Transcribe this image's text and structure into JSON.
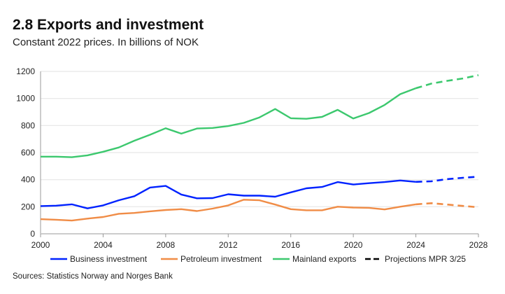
{
  "chart_data": {
    "type": "line",
    "title": "2.8 Exports and investment",
    "subtitle": "Constant 2022 prices. In billions of NOK",
    "source": "Sources: Statistics Norway and Norges Bank",
    "xlim": [
      2000,
      2028
    ],
    "ylim": [
      0,
      1200
    ],
    "xticks": [
      2000,
      2004,
      2008,
      2012,
      2016,
      2020,
      2024,
      2028
    ],
    "yticks": [
      0,
      200,
      400,
      600,
      800,
      1000,
      1200
    ],
    "grid": "horizontal",
    "legend_placement": "bottom",
    "projection_start": 2024,
    "x": [
      2000,
      2001,
      2002,
      2003,
      2004,
      2005,
      2006,
      2007,
      2008,
      2009,
      2010,
      2011,
      2012,
      2013,
      2014,
      2015,
      2016,
      2017,
      2018,
      2019,
      2020,
      2021,
      2022,
      2023,
      2024,
      2025,
      2026,
      2027,
      2028
    ],
    "series": [
      {
        "name": "Business investment",
        "color": "#0022ff",
        "values": [
          205,
          208,
          218,
          188,
          210,
          248,
          278,
          342,
          354,
          290,
          262,
          264,
          292,
          282,
          282,
          274,
          306,
          336,
          346,
          382,
          364,
          374,
          382,
          394,
          384,
          388,
          404,
          414,
          422
        ]
      },
      {
        "name": "Petroleum investment",
        "color": "#f08c46",
        "values": [
          108,
          104,
          98,
          112,
          124,
          148,
          154,
          166,
          176,
          182,
          168,
          186,
          210,
          252,
          248,
          216,
          182,
          174,
          174,
          200,
          194,
          192,
          180,
          200,
          218,
          226,
          216,
          206,
          196
        ]
      },
      {
        "name": "Mainland exports",
        "color": "#3cc86e",
        "values": [
          570,
          570,
          566,
          580,
          606,
          638,
          688,
          732,
          780,
          740,
          778,
          782,
          796,
          820,
          860,
          922,
          854,
          850,
          864,
          916,
          852,
          892,
          952,
          1032,
          1076,
          1110,
          1130,
          1148,
          1172
        ]
      }
    ],
    "projection_legend": {
      "name": "Projections MPR 3/25",
      "color": "#000000"
    }
  }
}
